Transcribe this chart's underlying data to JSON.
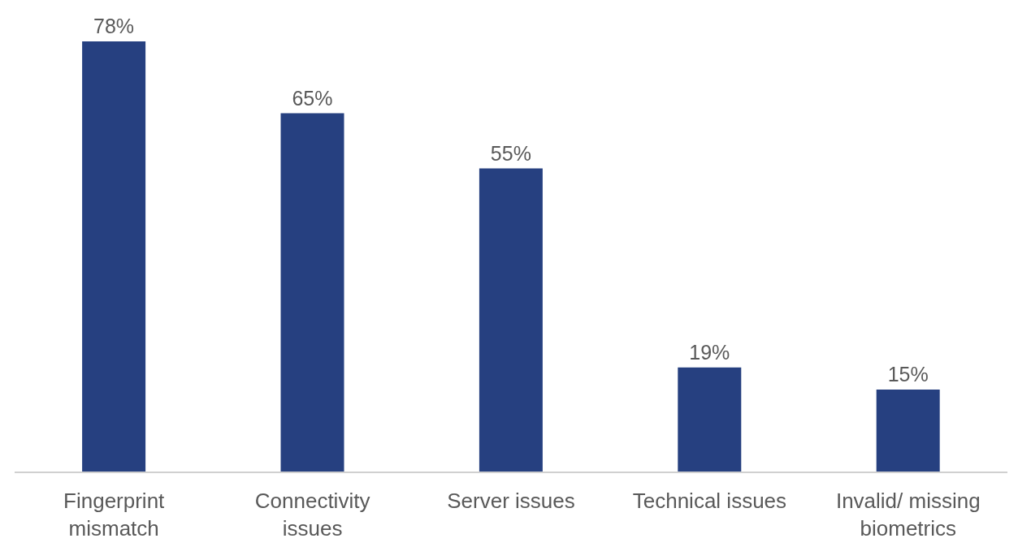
{
  "chart_data": {
    "type": "bar",
    "categories": [
      "Fingerprint mismatch",
      "Connectivity issues",
      "Server issues",
      "Technical issues",
      "Invalid/ missing biometrics"
    ],
    "values": [
      78,
      65,
      55,
      19,
      15
    ],
    "value_labels": [
      "78%",
      "65%",
      "55%",
      "19%",
      "15%"
    ],
    "color": "#264080"
  }
}
